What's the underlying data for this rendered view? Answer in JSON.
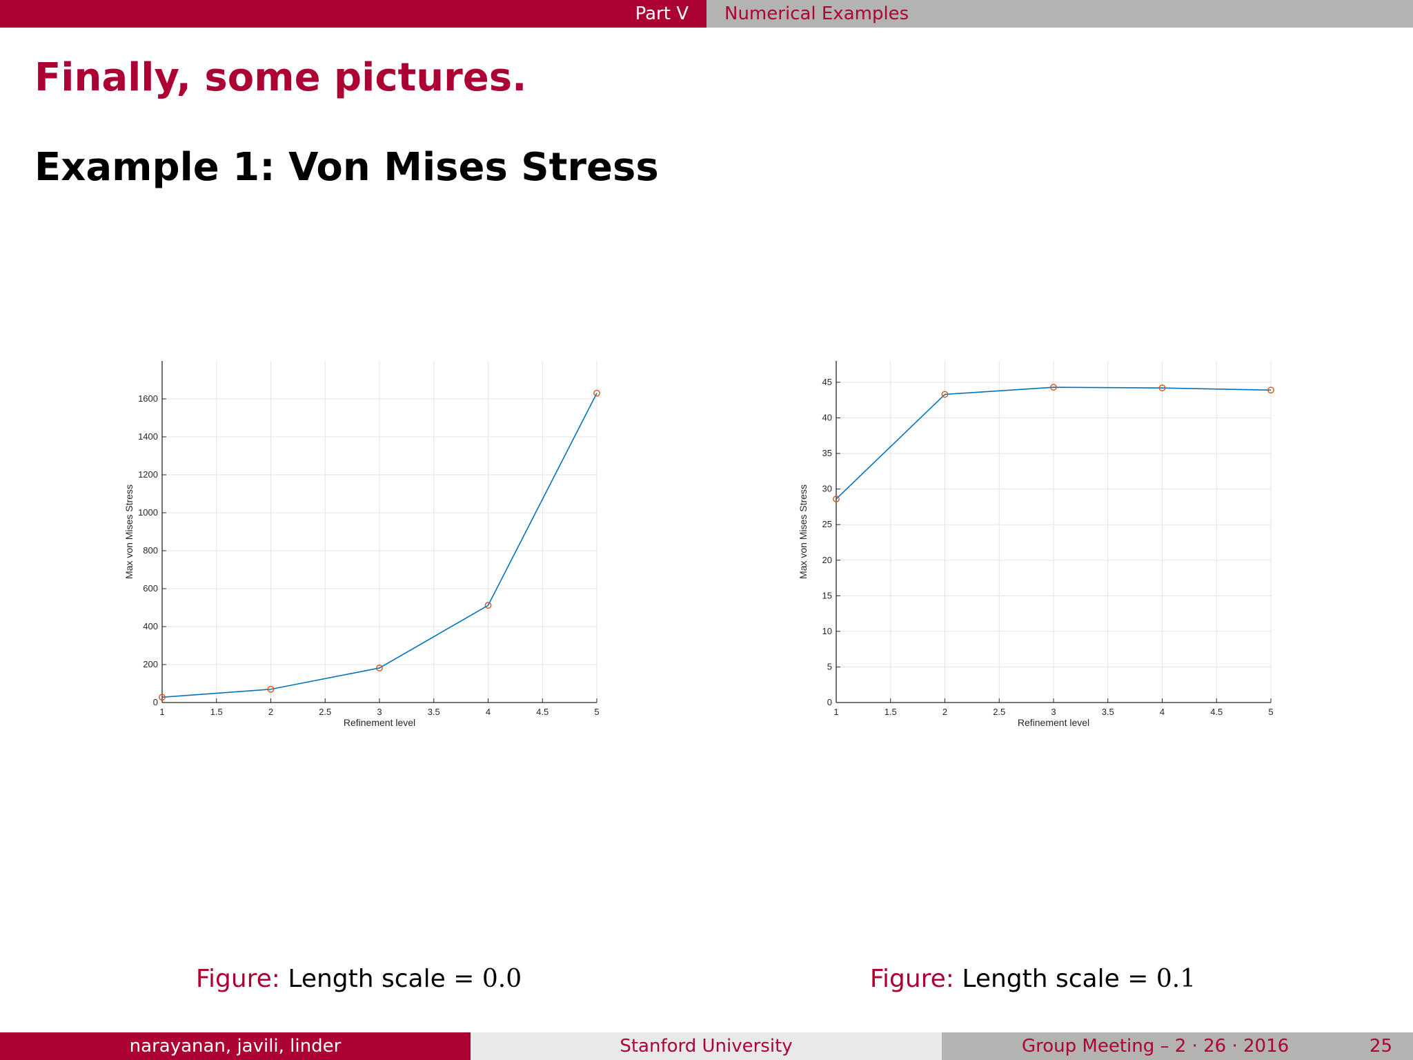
{
  "header": {
    "part": "Part V",
    "section": "Numerical Examples"
  },
  "frame_title": "Finally, some pictures.",
  "block_heading": "Example 1: Von Mises Stress",
  "colors": {
    "accent": "#ab0233",
    "gray": "#b3b3b1",
    "light_gray": "#e9e9e9",
    "line": "#0072bd",
    "marker": "#d95319"
  },
  "chart_data": [
    {
      "type": "line",
      "x": [
        1,
        2,
        3,
        4,
        5
      ],
      "series": [
        {
          "values": [
            28,
            70,
            182,
            512,
            1630
          ]
        }
      ],
      "xlabel": "Refinement level",
      "ylabel": "Max von Mises Stress",
      "xlim": [
        1,
        5
      ],
      "ylim": [
        0,
        1800
      ],
      "xticks": [
        1,
        1.5,
        2,
        2.5,
        3,
        3.5,
        4,
        4.5,
        5
      ],
      "yticks": [
        0,
        200,
        400,
        600,
        800,
        1000,
        1200,
        1400,
        1600
      ],
      "grid": true,
      "markers": "circle"
    },
    {
      "type": "line",
      "x": [
        1,
        2,
        3,
        4,
        5
      ],
      "series": [
        {
          "values": [
            28.6,
            43.3,
            44.3,
            44.2,
            43.9
          ]
        }
      ],
      "xlabel": "Refinement level",
      "ylabel": "Max von Mises Stress",
      "xlim": [
        1,
        5
      ],
      "ylim": [
        0,
        48
      ],
      "xticks": [
        1,
        1.5,
        2,
        2.5,
        3,
        3.5,
        4,
        4.5,
        5
      ],
      "yticks": [
        0,
        5,
        10,
        15,
        20,
        25,
        30,
        35,
        40,
        45
      ],
      "grid": true,
      "markers": "circle"
    }
  ],
  "captions": [
    {
      "prefix": "Figure:",
      "text": "Length scale",
      "equals": "=",
      "value": "0.0"
    },
    {
      "prefix": "Figure:",
      "text": "Length scale",
      "equals": "=",
      "value": "0.1"
    }
  ],
  "footer": {
    "authors": "narayanan, javili, linder",
    "institution": "Stanford University",
    "date": "Group Meeting – 2 · 26 · 2016",
    "page": "25"
  }
}
